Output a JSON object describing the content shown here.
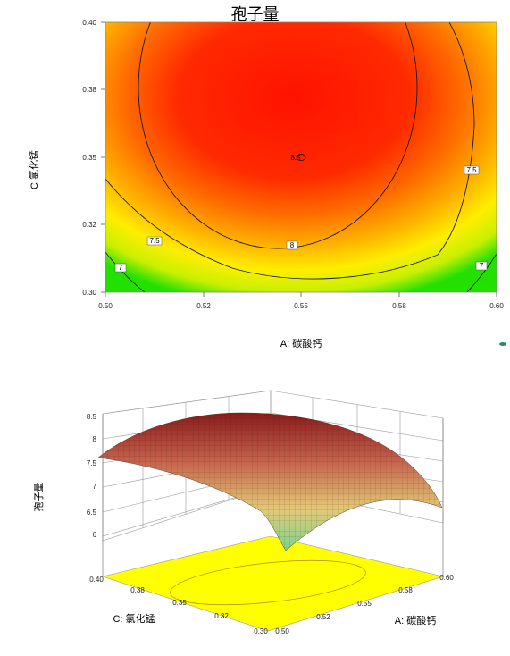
{
  "chart_data": [
    {
      "type": "heatmap",
      "title": "孢子量",
      "xlabel": "A: 碳酸钙",
      "ylabel": "C:氯化锰",
      "xlim": [
        0.5,
        0.6
      ],
      "ylim": [
        0.3,
        0.4
      ],
      "x_ticks": [
        "0.50",
        "0.52",
        "0.55",
        "0.58",
        "0.60"
      ],
      "y_ticks": [
        "0.40",
        "0.38",
        "0.35",
        "0.32",
        "0.30"
      ],
      "contour_levels": [
        7,
        7.5,
        8,
        8.5
      ],
      "contour_labels": [
        "7",
        "7.5",
        "8",
        "8.5",
        "7.5",
        "7"
      ],
      "colormap": [
        "#00cc00",
        "#ffff00",
        "#ff9900",
        "#ff0000"
      ]
    },
    {
      "type": "surface",
      "zlabel": "孢子量",
      "xlabel": "A: 碳酸钙",
      "ylabel": "C: 氯化锰",
      "z_ticks": [
        "8.5",
        "8",
        "7.5",
        "7",
        "6.5",
        "6"
      ],
      "x_ticks": [
        "0.50",
        "0.52",
        "0.55",
        "0.58",
        "0.60"
      ],
      "y_ticks": [
        "0.40",
        "0.38",
        "0.35",
        "0.32",
        "0.30"
      ],
      "zlim": [
        6,
        8.5
      ]
    }
  ]
}
